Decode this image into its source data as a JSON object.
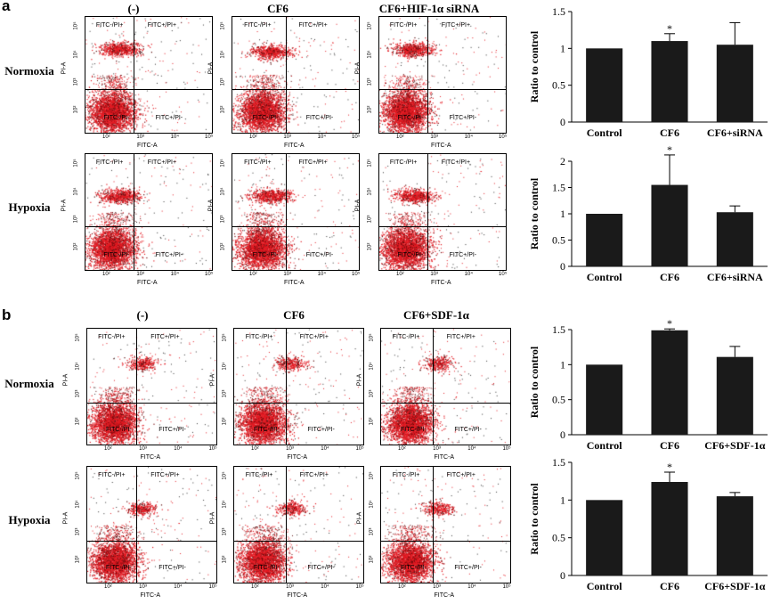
{
  "panel_a": {
    "letter": "a",
    "columns": [
      "(-)",
      "CF6",
      "CF6+HIF-1α siRNA"
    ],
    "rows": [
      "Normoxia",
      "Hypoxia"
    ]
  },
  "panel_b": {
    "letter": "b",
    "columns": [
      "(-)",
      "CF6",
      "CF6+SDF-1α"
    ],
    "rows": [
      "Normoxia",
      "Hypoxia"
    ]
  },
  "flow_plot": {
    "quadrants": {
      "ul": "FITC-/PI+",
      "ur": "FITC+/PI+",
      "ll": "FITC-/PI-",
      "lr": "FITC+/PI-"
    },
    "xlabel": "FITC-A",
    "ylabel": "PI-A",
    "x_ticks": [
      "10²",
      "10³",
      "10⁴",
      "10⁵"
    ],
    "y_ticks": [
      "10²",
      "10³",
      "10⁴",
      "10⁵"
    ],
    "dot_color": "#e31b23"
  },
  "chart_data": [
    {
      "id": "a-normoxia",
      "type": "bar",
      "categories": [
        "Control",
        "CF6",
        "CF6+siRNA"
      ],
      "values": [
        1.0,
        1.1,
        1.05
      ],
      "errors": [
        0,
        0.1,
        0.3
      ],
      "significance": [
        "",
        "*",
        ""
      ],
      "ylabel": "Ratio to control",
      "ylim": [
        0,
        1.5
      ],
      "yticks": [
        0,
        0.5,
        1,
        1.5
      ],
      "ytick_labels": [
        "0",
        "0.5",
        "1",
        "1.5"
      ]
    },
    {
      "id": "a-hypoxia",
      "type": "bar",
      "categories": [
        "Control",
        "CF6",
        "CF6+siRNA"
      ],
      "values": [
        1.0,
        1.55,
        1.03
      ],
      "errors": [
        0,
        0.57,
        0.12
      ],
      "significance": [
        "",
        "*",
        ""
      ],
      "ylabel": "Ratio to control",
      "ylim": [
        0,
        2
      ],
      "yticks": [
        0,
        0.5,
        1,
        1.5,
        2
      ],
      "ytick_labels": [
        "0",
        "0.5",
        "1",
        "1.5",
        "2"
      ]
    },
    {
      "id": "b-normoxia",
      "type": "bar",
      "categories": [
        "Control",
        "CF6",
        "CF6+SDF-1α"
      ],
      "values": [
        1.0,
        1.49,
        1.11
      ],
      "errors": [
        0,
        0.02,
        0.15
      ],
      "significance": [
        "",
        "*",
        ""
      ],
      "ylabel": "Ratio to control",
      "ylim": [
        0,
        1.5
      ],
      "yticks": [
        0,
        0.5,
        1,
        1.5
      ],
      "ytick_labels": [
        "0",
        "0.5",
        "1",
        "1.5"
      ]
    },
    {
      "id": "b-hypoxia",
      "type": "bar",
      "categories": [
        "Control",
        "CF6",
        "CF6+SDF-1α"
      ],
      "values": [
        1.0,
        1.24,
        1.05
      ],
      "errors": [
        0,
        0.13,
        0.05
      ],
      "significance": [
        "",
        "*",
        ""
      ],
      "ylabel": "Ratio to control",
      "ylim": [
        0,
        1.5
      ],
      "yticks": [
        0,
        0.5,
        1,
        1.5
      ],
      "ytick_labels": [
        "0",
        "0.5",
        "1",
        "1.5"
      ]
    }
  ]
}
